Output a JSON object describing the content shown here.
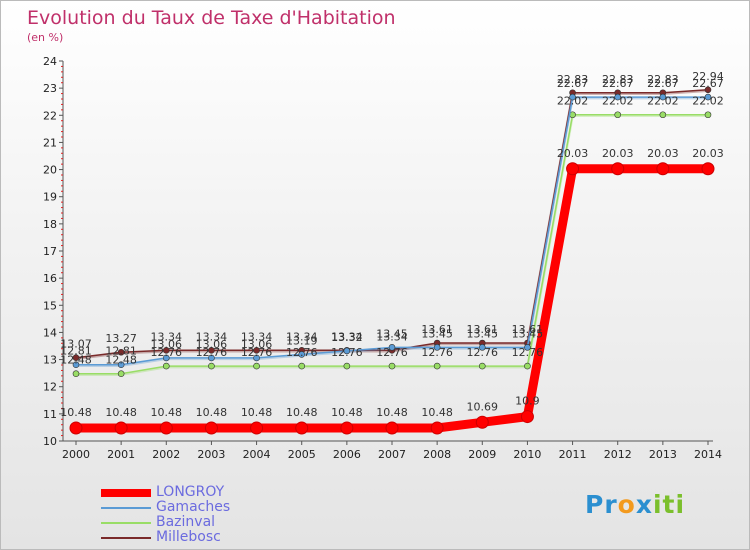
{
  "chart_data": {
    "type": "line",
    "title": "Evolution du Taux de Taxe d'Habitation",
    "subtitle": "(en %)",
    "xlabel": "",
    "ylabel": "",
    "x": [
      "2000",
      "2001",
      "2002",
      "2003",
      "2004",
      "2005",
      "2006",
      "2007",
      "2008",
      "2009",
      "2010",
      "2011",
      "2012",
      "2013",
      "2014"
    ],
    "ylim": [
      10,
      24
    ],
    "yticks": [
      10,
      11,
      12,
      13,
      14,
      15,
      16,
      17,
      18,
      19,
      20,
      21,
      22,
      23,
      24
    ],
    "grid": false,
    "legend_position": "bottom-left",
    "series": [
      {
        "name": "LONGROY",
        "color": "#ff0000",
        "width": 9,
        "values": [
          10.48,
          10.48,
          10.48,
          10.48,
          10.48,
          10.48,
          10.48,
          10.48,
          10.48,
          10.69,
          10.9,
          20.03,
          20.03,
          20.03,
          20.03
        ],
        "labels": [
          "10.48",
          "10.48",
          "10.48",
          "10.48",
          "10.48",
          "10.48",
          "10.48",
          "10.48",
          "10.48",
          "10.69",
          "10.9",
          "20.03",
          "20.03",
          "20.03",
          "20.03"
        ]
      },
      {
        "name": "Gamaches",
        "color": "#5b9bd5",
        "width": 1.5,
        "values": [
          12.81,
          12.81,
          13.06,
          13.06,
          13.06,
          13.19,
          13.32,
          13.45,
          13.45,
          13.45,
          13.45,
          22.67,
          22.67,
          22.67,
          22.67
        ],
        "labels": [
          "12.81",
          "12.81",
          "13.06",
          "13.06",
          "13.06",
          "13.19",
          "13.32",
          "13.45",
          "13.45",
          "13.45",
          "13.45",
          "22.67",
          "22.67",
          "22.67",
          "22.67"
        ]
      },
      {
        "name": "Bazinval",
        "color": "#99dd66",
        "width": 1.5,
        "values": [
          12.48,
          12.48,
          12.76,
          12.76,
          12.76,
          12.76,
          12.76,
          12.76,
          12.76,
          12.76,
          12.76,
          22.02,
          22.02,
          22.02,
          22.02
        ],
        "labels": [
          "12.48",
          "12.48",
          "12.76",
          "12.76",
          "12.76",
          "12.76",
          "12.76",
          "12.76",
          "12.76",
          "12.76",
          "12.76",
          "22.02",
          "22.02",
          "22.02",
          "22.02"
        ]
      },
      {
        "name": "Millebosc",
        "color": "#7a2a2a",
        "width": 1.5,
        "values": [
          13.07,
          13.27,
          13.34,
          13.34,
          13.34,
          13.34,
          13.34,
          13.34,
          13.61,
          13.61,
          13.61,
          22.83,
          22.83,
          22.83,
          22.94
        ],
        "labels": [
          "13.07",
          "13.27",
          "13.34",
          "13.34",
          "13.34",
          "13.34",
          "13.34",
          "13.34",
          "13.61",
          "13.61",
          "13.61",
          "22.83",
          "22.83",
          "22.83",
          "22.94"
        ]
      }
    ]
  },
  "logo": {
    "part1": "Pr",
    "part2": "o",
    "part3": "x",
    "part4": "iti"
  }
}
